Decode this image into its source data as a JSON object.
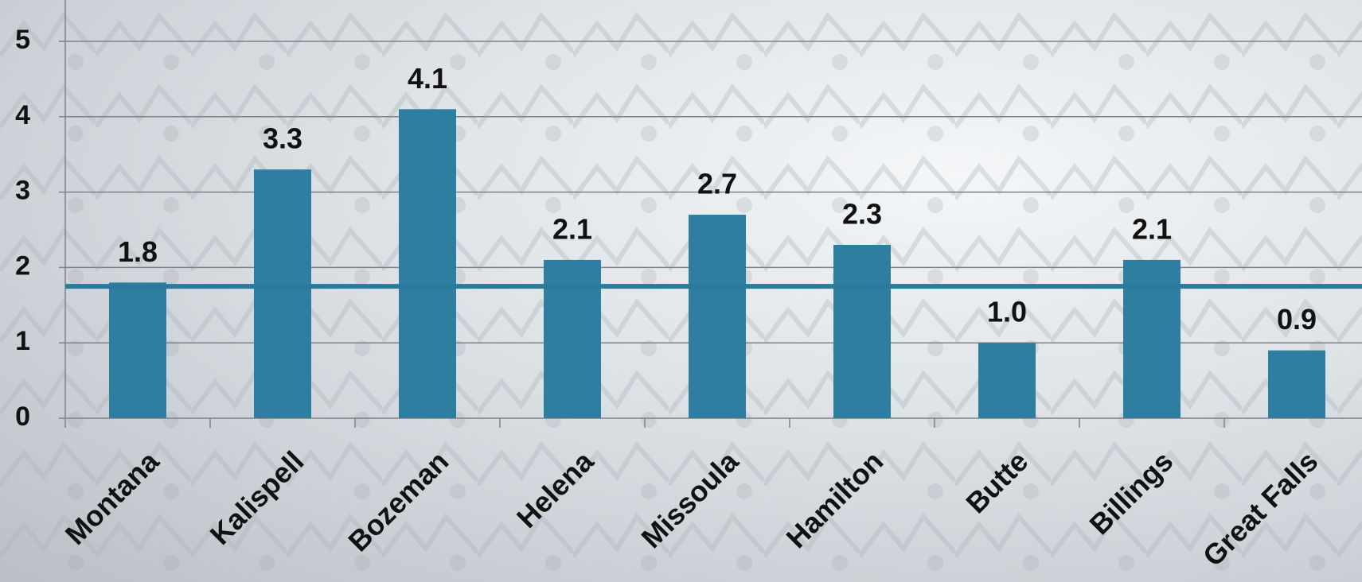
{
  "chart_data": {
    "type": "bar",
    "categories": [
      "Montana",
      "Kalispell",
      "Bozeman",
      "Helena",
      "Missoula",
      "Hamilton",
      "Butte",
      "Billings",
      "Great Falls"
    ],
    "values": [
      1.8,
      3.3,
      4.1,
      2.1,
      2.7,
      2.3,
      1.0,
      2.1,
      0.9
    ],
    "value_labels": [
      "1.8",
      "3.3",
      "4.1",
      "2.1",
      "2.7",
      "2.3",
      "1.0",
      "2.1",
      "0.9"
    ],
    "color": "#2e7ea1",
    "reference_line": 1.75,
    "reference_color": "#2a7a9b",
    "ylim": [
      0,
      5
    ],
    "yticks": [
      0,
      1,
      2,
      3,
      4,
      5
    ],
    "grid": true
  }
}
